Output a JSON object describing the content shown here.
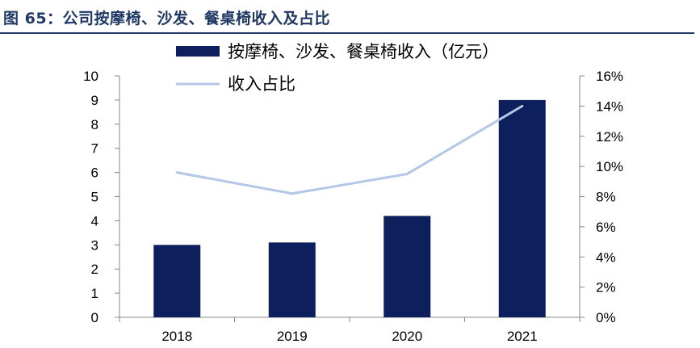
{
  "figure": {
    "title": "图 65：公司按摩椅、沙发、餐桌椅收入及占比"
  },
  "chart_data": {
    "type": "bar",
    "categories": [
      "2018",
      "2019",
      "2020",
      "2021"
    ],
    "series": [
      {
        "name": "按摩椅、沙发、餐桌椅收入（亿元）",
        "type": "bar",
        "axis": "left",
        "color": "#0d1f5c",
        "values": [
          3.0,
          3.1,
          4.2,
          9.0
        ]
      },
      {
        "name": "收入占比",
        "type": "line",
        "axis": "right",
        "color": "#b4c7e7",
        "values": [
          9.6,
          8.2,
          9.5,
          14.0
        ]
      }
    ],
    "y_left": {
      "min": 0,
      "max": 10,
      "ticks": [
        "0",
        "1",
        "2",
        "3",
        "4",
        "5",
        "6",
        "7",
        "8",
        "9",
        "10"
      ]
    },
    "y_right": {
      "min": 0,
      "max": 16,
      "unit": "%",
      "ticks": [
        "0%",
        "2%",
        "4%",
        "6%",
        "8%",
        "10%",
        "12%",
        "14%",
        "16%"
      ]
    },
    "legend": {
      "placement": "top-center"
    },
    "grid": false
  }
}
